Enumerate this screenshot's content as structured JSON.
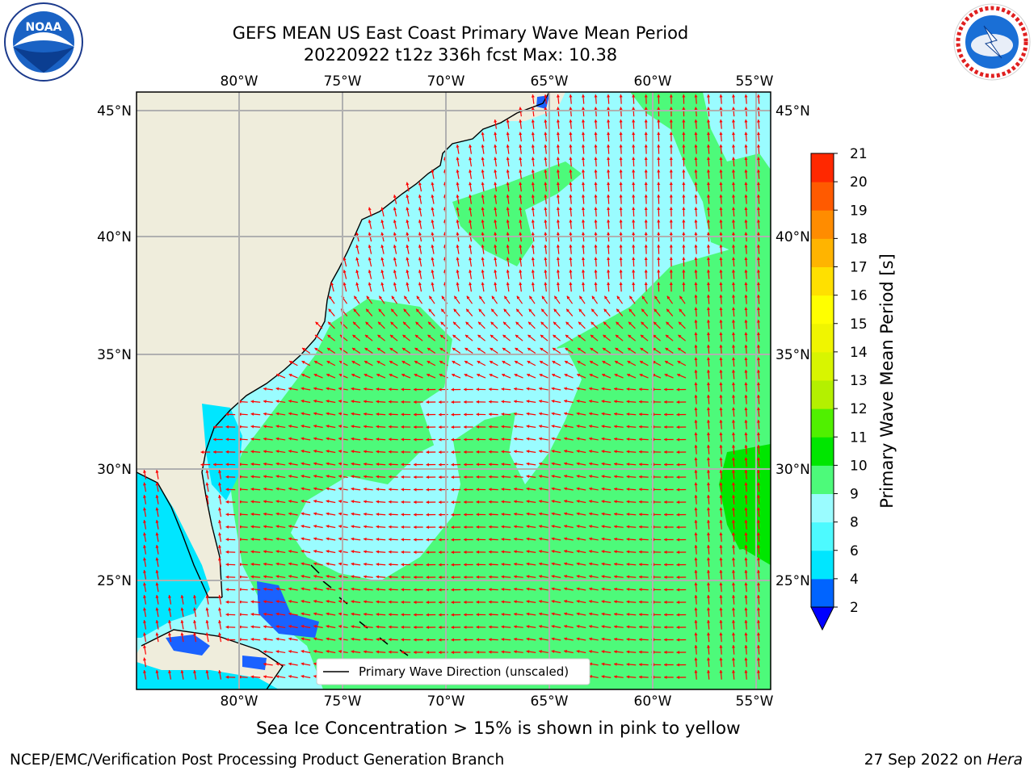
{
  "header": {
    "title_line1": "GEFS MEAN US East Coast Primary Wave Mean Period",
    "title_line2": "20220922 t12z 336h fcst   Max: 10.38"
  },
  "logos": {
    "left": {
      "name": "noaa-logo",
      "text": "NOAA"
    },
    "right": {
      "name": "nws-logo",
      "text": "NATIONAL WEATHER SERVICE"
    }
  },
  "map": {
    "lon_labels": [
      "80°W",
      "75°W",
      "70°W",
      "65°W",
      "60°W",
      "55°W"
    ],
    "lat_labels": [
      "45°N",
      "40°N",
      "35°N",
      "30°N",
      "25°N"
    ],
    "legend_label": "Primary Wave Direction (unscaled)",
    "land_color": "#efeddc",
    "arrow_color": "#ff0000"
  },
  "colorbar": {
    "label": "Primary Wave Mean Period [s]",
    "ticks": [
      "2",
      "4",
      "6",
      "8",
      "9",
      "10",
      "11",
      "12",
      "13",
      "14",
      "15",
      "16",
      "17",
      "18",
      "19",
      "20",
      "21"
    ],
    "colors": [
      "#0064ff",
      "#00e6ff",
      "#4dfaff",
      "#9afcff",
      "#4dfa7a",
      "#00e600",
      "#50f000",
      "#b4f000",
      "#d8f500",
      "#f0f500",
      "#ffff00",
      "#ffe000",
      "#ffb400",
      "#ff8c00",
      "#ff5a00",
      "#ff2800"
    ],
    "extend_color": "#0000ff"
  },
  "footer": {
    "note": "Sea Ice Concentration > 15% is shown in pink to yellow",
    "left": "NCEP/EMC/Verification Post Processing Product Generation Branch",
    "right_prefix": "27 Sep 2022 on ",
    "right_host": "Hera"
  }
}
